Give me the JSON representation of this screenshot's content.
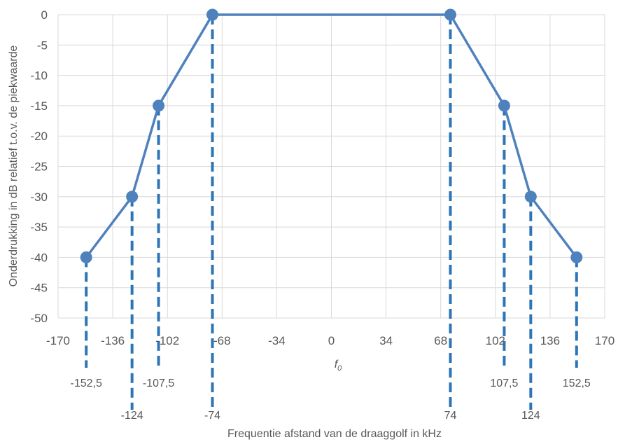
{
  "chart_data": {
    "type": "line",
    "title": "",
    "xlabel": "Frequentie afstand van de draaggolf in kHz",
    "ylabel": "Onderdrukking in dB relatief t.o.v. de piekwaarde",
    "xlim": [
      -170,
      170
    ],
    "ylim": [
      -50,
      0
    ],
    "x_ticks": [
      -170,
      -136,
      -102,
      -68,
      -34,
      0,
      34,
      68,
      102,
      136,
      170
    ],
    "y_ticks": [
      0,
      -5,
      -10,
      -15,
      -20,
      -25,
      -30,
      -35,
      -40,
      -45,
      -50
    ],
    "grid": true,
    "legend": "none",
    "series": [
      {
        "x": [
          -152.5,
          -124,
          -107.5,
          -74,
          74,
          107.5,
          124,
          152.5
        ],
        "y": [
          -40,
          -30,
          -15,
          0,
          0,
          -15,
          -30,
          -40
        ]
      }
    ],
    "annotations": {
      "center_label": "f0",
      "drop_lines": [
        {
          "x": -152.5,
          "label": "-152,5",
          "label_row": 1
        },
        {
          "x": -124,
          "label": "-124",
          "label_row": 2
        },
        {
          "x": -107.5,
          "label": "-107,5",
          "label_row": 1
        },
        {
          "x": -74,
          "label": "-74",
          "label_row": 2
        },
        {
          "x": 74,
          "label": "74",
          "label_row": 2
        },
        {
          "x": 107.5,
          "label": "107,5",
          "label_row": 1
        },
        {
          "x": 124,
          "label": "124",
          "label_row": 2
        },
        {
          "x": 152.5,
          "label": "152,5",
          "label_row": 1
        }
      ]
    },
    "colors": {
      "series": "#4f81bd",
      "drop_line": "#2e75b6",
      "grid": "#d9d9d9",
      "text": "#595959"
    }
  }
}
